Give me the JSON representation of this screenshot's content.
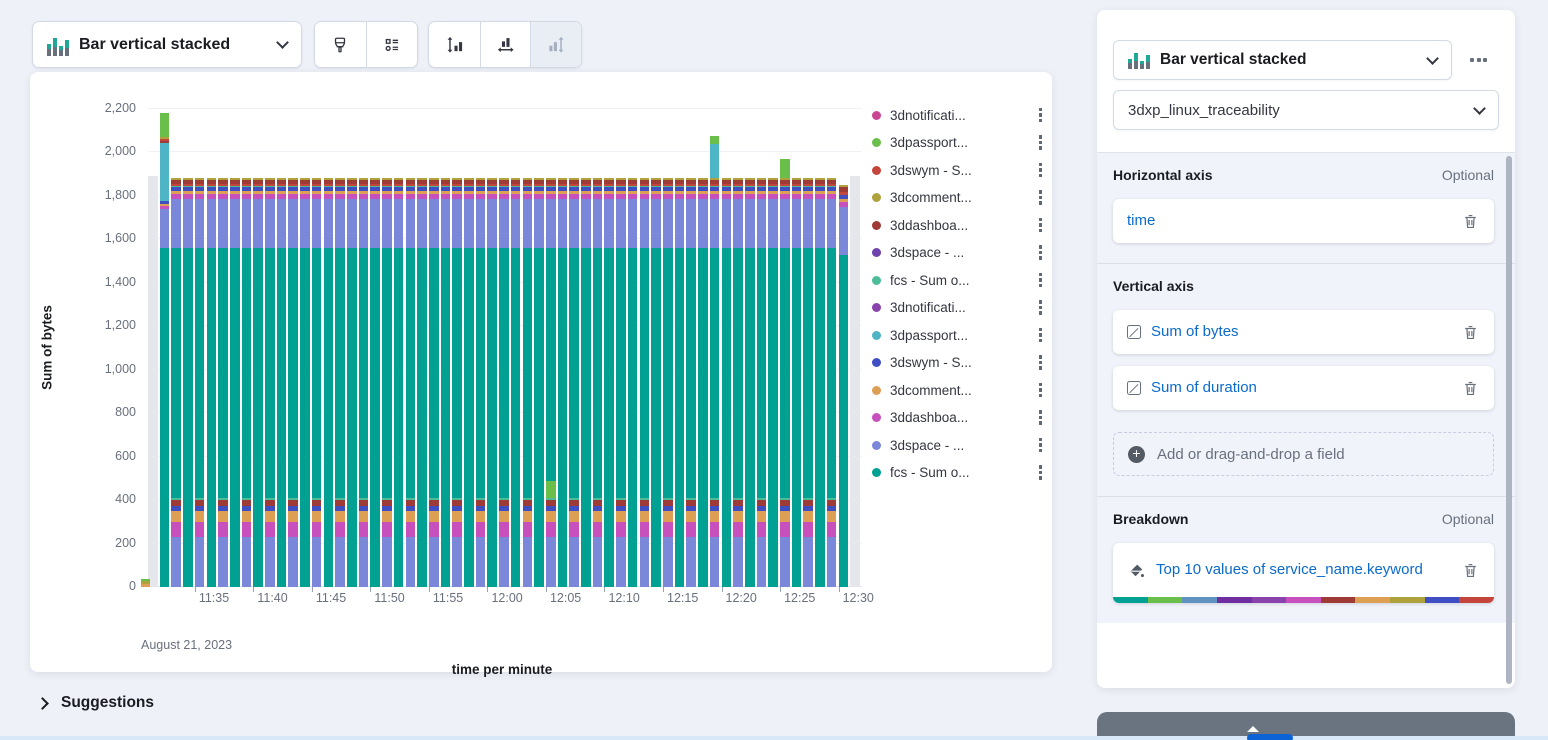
{
  "toolbar": {
    "chart_type_button": {
      "label": "Bar vertical stacked"
    }
  },
  "config_panel": {
    "chart_type_select": "Bar vertical stacked",
    "data_view_select": "3dxp_linux_traceability",
    "sections": {
      "horizontal_axis": {
        "title": "Horizontal axis",
        "badge": "Optional",
        "fields": [
          {
            "label": "time"
          }
        ]
      },
      "vertical_axis": {
        "title": "Vertical axis",
        "fields": [
          {
            "label": "Sum of bytes"
          },
          {
            "label": "Sum of duration"
          }
        ],
        "add_field_label": "Add or drag-and-drop a field"
      },
      "breakdown": {
        "title": "Breakdown",
        "badge": "Optional",
        "fields": [
          {
            "label": "Top 10 values of service_name.keyword"
          }
        ],
        "palette": [
          "#00a093",
          "#69bf49",
          "#6092c0",
          "#6f2fa0",
          "#8a43ad",
          "#c750bd",
          "#9e3b36",
          "#dd9f53",
          "#aea23d",
          "#3f4ec2",
          "#c4453c"
        ]
      }
    }
  },
  "suggestions": {
    "label": "Suggestions"
  },
  "chart": {
    "legend": {
      "items": [
        {
          "label": "3dnotificati...",
          "color": "#c94792"
        },
        {
          "label": "3dpassport...",
          "color": "#69bf49"
        },
        {
          "label": "3dswym - S...",
          "color": "#c4453c"
        },
        {
          "label": "3dcomment...",
          "color": "#aea23d"
        },
        {
          "label": "3ddashboa...",
          "color": "#9e3b36"
        },
        {
          "label": "3dspace - ...",
          "color": "#6f42ad"
        },
        {
          "label": "fcs - Sum o...",
          "color": "#4cbd98"
        },
        {
          "label": "3dnotificati...",
          "color": "#8a43ad"
        },
        {
          "label": "3dpassport...",
          "color": "#4db5c5"
        },
        {
          "label": "3dswym - S...",
          "color": "#3f4ec2"
        },
        {
          "label": "3dcomment...",
          "color": "#dd9f53"
        },
        {
          "label": "3ddashboa...",
          "color": "#c750bd"
        },
        {
          "label": "3dspace - ...",
          "color": "#7b87d8"
        },
        {
          "label": "fcs - Sum o...",
          "color": "#00a093"
        }
      ]
    }
  },
  "chart_data": {
    "type": "bar",
    "stacked": true,
    "title": "",
    "xlabel": "time per minute",
    "ylabel": "Sum of bytes",
    "x_axis_context": "August 21, 2023",
    "ylim": [
      0,
      2200
    ],
    "y_tick_step": 200,
    "x_ticks": [
      {
        "label": "11:35",
        "col": 4
      },
      {
        "label": "11:40",
        "col": 9
      },
      {
        "label": "11:45",
        "col": 14
      },
      {
        "label": "11:50",
        "col": 19
      },
      {
        "label": "11:55",
        "col": 24
      },
      {
        "label": "12:00",
        "col": 29
      },
      {
        "label": "12:05",
        "col": 34
      },
      {
        "label": "12:10",
        "col": 39
      },
      {
        "label": "12:15",
        "col": 44
      },
      {
        "label": "12:20",
        "col": 49
      },
      {
        "label": "12:25",
        "col": 54
      },
      {
        "label": "12:30",
        "col": 59
      }
    ],
    "palette": {
      "teal": "#00a093",
      "peri": "#7b87d8",
      "magenta": "#c750bd",
      "tan": "#dd9f53",
      "indigo": "#3f4ec2",
      "darkred": "#9e3b36",
      "seafoam": "#4cbd98",
      "red": "#c4453c",
      "olive": "#aea23d",
      "green": "#69bf49",
      "cyan": "#4db5c5",
      "violet": "#6f42ad",
      "purple": "#8a43ad",
      "pink": "#c94792",
      "gray": "#e5e7ec"
    },
    "templates": {
      "gray": [
        [
          "gray",
          1890
        ]
      ],
      "stub": [
        [
          "tan",
          14
        ],
        [
          "olive",
          12
        ],
        [
          "green",
          9
        ]
      ],
      "bytes": [
        [
          "teal",
          1562
        ],
        [
          "peri",
          225
        ],
        [
          "magenta",
          22
        ],
        [
          "tan",
          14
        ],
        [
          "indigo",
          18
        ],
        [
          "seafoam",
          6
        ],
        [
          "red",
          10
        ],
        [
          "darkred",
          18
        ],
        [
          "olive",
          10
        ]
      ],
      "duration": [
        [
          "peri",
          230
        ],
        [
          "magenta",
          70
        ],
        [
          "tan",
          50
        ],
        [
          "indigo",
          22
        ],
        [
          "darkred",
          30
        ],
        [
          "seafoam",
          10
        ],
        [
          "teal",
          1150
        ],
        [
          "peri",
          225
        ],
        [
          "magenta",
          22
        ],
        [
          "tan",
          14
        ],
        [
          "indigo",
          18
        ],
        [
          "seafoam",
          6
        ],
        [
          "red",
          10
        ],
        [
          "darkred",
          18
        ],
        [
          "olive",
          10
        ]
      ],
      "tall_first": [
        [
          "teal",
          1560
        ],
        [
          "peri",
          180
        ],
        [
          "magenta",
          15
        ],
        [
          "tan",
          10
        ],
        [
          "indigo",
          12
        ],
        [
          "cyan",
          265
        ],
        [
          "darkred",
          12
        ],
        [
          "red",
          10
        ],
        [
          "olive",
          8
        ],
        [
          "green",
          108
        ]
      ],
      "green_mid": [
        [
          "peri",
          230
        ],
        [
          "magenta",
          70
        ],
        [
          "tan",
          50
        ],
        [
          "indigo",
          22
        ],
        [
          "darkred",
          30
        ],
        [
          "seafoam",
          10
        ],
        [
          "green",
          78
        ],
        [
          "teal",
          1072
        ],
        [
          "peri",
          225
        ],
        [
          "magenta",
          22
        ],
        [
          "tan",
          14
        ],
        [
          "indigo",
          18
        ],
        [
          "seafoam",
          6
        ],
        [
          "red",
          10
        ],
        [
          "darkred",
          18
        ],
        [
          "olive",
          10
        ]
      ],
      "tall_cyan": [
        [
          "peri",
          230
        ],
        [
          "magenta",
          70
        ],
        [
          "tan",
          50
        ],
        [
          "indigo",
          22
        ],
        [
          "darkred",
          30
        ],
        [
          "seafoam",
          10
        ],
        [
          "teal",
          1150
        ],
        [
          "peri",
          225
        ],
        [
          "magenta",
          22
        ],
        [
          "tan",
          14
        ],
        [
          "indigo",
          18
        ],
        [
          "seafoam",
          6
        ],
        [
          "red",
          10
        ],
        [
          "darkred",
          18
        ],
        [
          "olive",
          10
        ],
        [
          "cyan",
          155
        ],
        [
          "green",
          35
        ]
      ],
      "green_top": [
        [
          "peri",
          230
        ],
        [
          "magenta",
          70
        ],
        [
          "tan",
          50
        ],
        [
          "indigo",
          22
        ],
        [
          "darkred",
          30
        ],
        [
          "seafoam",
          10
        ],
        [
          "teal",
          1150
        ],
        [
          "peri",
          225
        ],
        [
          "magenta",
          22
        ],
        [
          "tan",
          14
        ],
        [
          "indigo",
          18
        ],
        [
          "seafoam",
          6
        ],
        [
          "red",
          10
        ],
        [
          "darkred",
          18
        ],
        [
          "olive",
          10
        ],
        [
          "green",
          85
        ]
      ],
      "last": [
        [
          "teal",
          1530
        ],
        [
          "peri",
          220
        ],
        [
          "magenta",
          22
        ],
        [
          "tan",
          14
        ],
        [
          "indigo",
          18
        ],
        [
          "red",
          12
        ],
        [
          "darkred",
          25
        ],
        [
          "olive",
          10
        ]
      ]
    },
    "columns": {
      "count": 61,
      "start_minute": "11:31",
      "default_even": "duration",
      "default_odd": "bytes",
      "overrides": {
        "0": "gray",
        "1": "tall_first",
        "34": "green_mid",
        "48": "tall_cyan",
        "54": "green_top",
        "59": "last",
        "60": "gray"
      },
      "stub": {
        "template": "stub",
        "near_col": 0
      }
    }
  }
}
